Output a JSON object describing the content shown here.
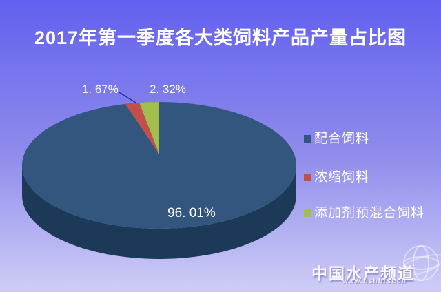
{
  "chart_data": {
    "type": "pie",
    "style": "3d",
    "title": "2017年第一季度各大类饲料产品产量占比图",
    "labels": [
      "配合饲料",
      "浓缩饲料",
      "添加剂预混合饲料"
    ],
    "values": [
      96.01,
      1.67,
      2.32
    ],
    "display_labels": [
      "96. 01%",
      "1. 67%",
      "2. 32%"
    ],
    "colors": [
      "#33567e",
      "#c24f4a",
      "#a2bf4d"
    ],
    "side_color": "#1c3a57",
    "leader_line_color": "#2a2d8f",
    "legend_position": "right",
    "start_angle_deg": 0,
    "direction": "clockwise"
  },
  "watermark": {
    "name": "中国水产频道",
    "url": "www.fishfirst.cn"
  },
  "background": {
    "top_color": "#6260ef",
    "bottom_color": "#cfcdf6",
    "text_color": "#ffffff"
  }
}
